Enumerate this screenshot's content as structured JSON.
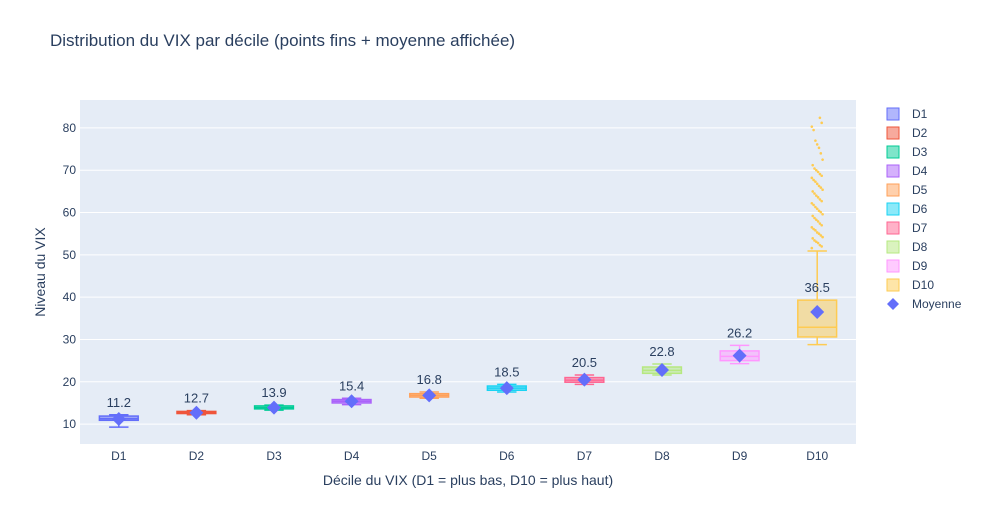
{
  "chart_data": {
    "type": "box",
    "title": "Distribution du VIX par décile (points fins + moyenne affichée)",
    "xlabel": "Décile du VIX (D1 = plus bas, D10 = plus haut)",
    "ylabel": "Niveau du VIX",
    "ylim": [
      5.3,
      86.6
    ],
    "yticks": [
      10,
      20,
      30,
      40,
      50,
      60,
      70,
      80
    ],
    "grid": true,
    "legend_position": "right",
    "categories": [
      "D1",
      "D2",
      "D3",
      "D4",
      "D5",
      "D6",
      "D7",
      "D8",
      "D9",
      "D10"
    ],
    "series": [
      {
        "name": "D1",
        "color": "#636efa",
        "min": 9.3,
        "q1": 10.9,
        "median": 11.3,
        "q3": 11.9,
        "max": 12.2,
        "mean": 11.2
      },
      {
        "name": "D2",
        "color": "#EF553B",
        "min": 12.2,
        "q1": 12.5,
        "median": 12.7,
        "q3": 13.0,
        "max": 13.2,
        "mean": 12.7
      },
      {
        "name": "D3",
        "color": "#00cc96",
        "min": 13.3,
        "q1": 13.6,
        "median": 13.9,
        "q3": 14.3,
        "max": 14.5,
        "mean": 13.9
      },
      {
        "name": "D4",
        "color": "#ab63fa",
        "min": 14.6,
        "q1": 15.0,
        "median": 15.4,
        "q3": 15.8,
        "max": 16.1,
        "mean": 15.4
      },
      {
        "name": "D5",
        "color": "#FFA15A",
        "min": 16.1,
        "q1": 16.4,
        "median": 16.8,
        "q3": 17.2,
        "max": 17.6,
        "mean": 16.8
      },
      {
        "name": "D6",
        "color": "#19d3f3",
        "min": 17.6,
        "q1": 18.0,
        "median": 18.5,
        "q3": 19.0,
        "max": 19.4,
        "mean": 18.5
      },
      {
        "name": "D7",
        "color": "#FF6692",
        "min": 19.4,
        "q1": 19.9,
        "median": 20.4,
        "q3": 21.0,
        "max": 21.6,
        "mean": 20.5
      },
      {
        "name": "D8",
        "color": "#B6E880",
        "min": 21.6,
        "q1": 22.0,
        "median": 22.7,
        "q3": 23.5,
        "max": 24.2,
        "mean": 22.8
      },
      {
        "name": "D9",
        "color": "#FF97FF",
        "min": 24.3,
        "q1": 25.0,
        "median": 26.0,
        "q3": 27.3,
        "max": 28.6,
        "mean": 26.2
      },
      {
        "name": "D10",
        "color": "#FECB52",
        "min": 28.8,
        "q1": 30.6,
        "median": 32.9,
        "q3": 39.3,
        "max": 50.9,
        "mean": 36.5,
        "outliers": [
          51.6,
          52.0,
          52.3,
          52.8,
          53.1,
          53.4,
          53.9,
          54.2,
          54.6,
          55.0,
          55.3,
          55.8,
          56.1,
          56.5,
          57.0,
          57.4,
          57.9,
          58.3,
          58.7,
          59.2,
          59.6,
          60.1,
          60.4,
          60.9,
          61.3,
          61.8,
          62.2,
          62.7,
          63.1,
          63.6,
          64.0,
          64.5,
          65.0,
          65.4,
          65.9,
          66.3,
          66.8,
          67.3,
          67.7,
          68.2,
          68.7,
          69.1,
          69.6,
          70.0,
          70.4,
          71.2,
          72.5,
          74.0,
          75.3,
          76.1,
          77.0,
          79.5,
          80.3,
          81.2,
          82.4
        ]
      }
    ],
    "mean_legend": "Moyenne",
    "mean_color": "#636efa"
  }
}
